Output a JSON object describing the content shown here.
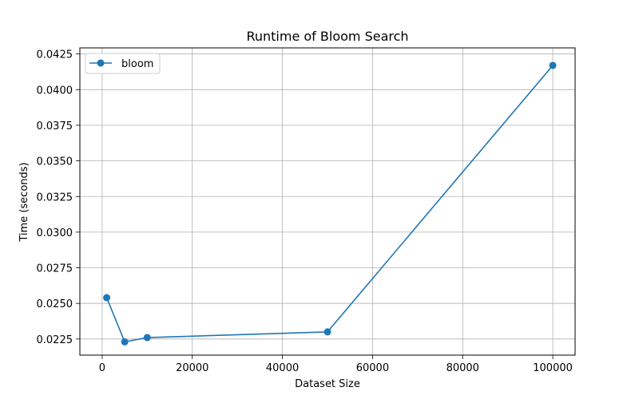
{
  "chart_data": {
    "type": "line",
    "title": "Runtime of Bloom Search",
    "xlabel": "Dataset Size",
    "ylabel": "Time (seconds)",
    "xlim": [
      -4950,
      104950
    ],
    "ylim": [
      0.02137,
      0.04293
    ],
    "xticks": [
      0,
      20000,
      40000,
      60000,
      80000,
      100000
    ],
    "xtick_labels": [
      "0",
      "20000",
      "40000",
      "60000",
      "80000",
      "100000"
    ],
    "yticks": [
      0.0225,
      0.025,
      0.0275,
      0.03,
      0.0325,
      0.035,
      0.0375,
      0.04,
      0.0425
    ],
    "ytick_labels": [
      "0.0225",
      "0.0250",
      "0.0275",
      "0.0300",
      "0.0325",
      "0.0350",
      "0.0375",
      "0.0400",
      "0.0425"
    ],
    "grid": true,
    "legend_position": "top-left",
    "series": [
      {
        "name": "bloom",
        "color": "#1f77b4",
        "marker": "circle",
        "x": [
          1000,
          5000,
          10000,
          50000,
          100000
        ],
        "y": [
          0.0254,
          0.0223,
          0.0226,
          0.023,
          0.0417
        ]
      }
    ]
  }
}
